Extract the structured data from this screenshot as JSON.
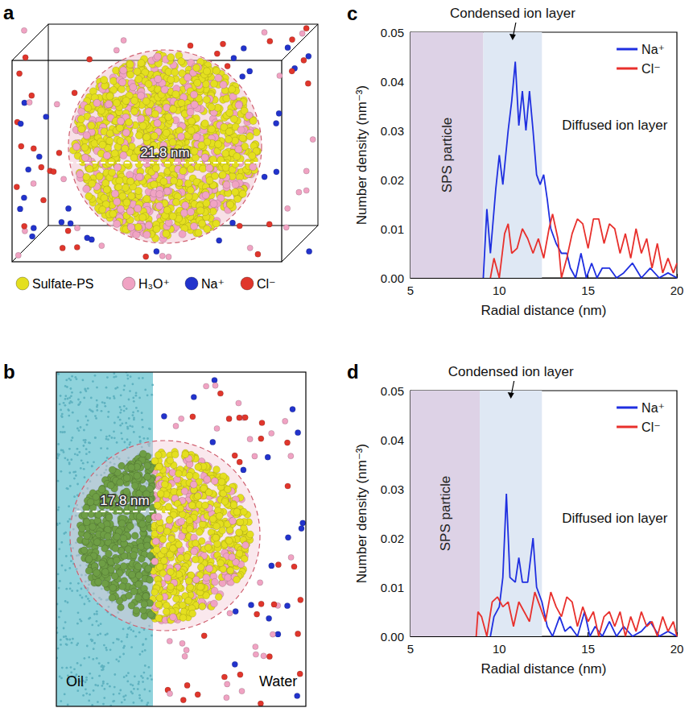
{
  "panels": [
    {
      "letter": "a",
      "scale_label": "21.8 nm",
      "legend": [
        {
          "label": "Sulfate-PS",
          "color": "#e4df1f"
        },
        {
          "label": "H₃O⁺",
          "color": "#f0a3c3"
        },
        {
          "label": "Na⁺",
          "color": "#2233cc"
        },
        {
          "label": "Cl⁻",
          "color": "#e0362c"
        }
      ]
    },
    {
      "letter": "b",
      "scale_label": "17.8 nm",
      "phases": [
        {
          "label": "Oil",
          "color": "#8fd3dc"
        },
        {
          "label": "Water",
          "color": "#ffffff"
        }
      ]
    }
  ],
  "chart_data": [
    {
      "type": "line",
      "panel_label": "c",
      "xlabel": "Radial distance (nm)",
      "ylabel": "Number density (nm⁻³)",
      "xlim": [
        5,
        20
      ],
      "xticks": [
        5,
        10,
        15,
        20
      ],
      "ylim": [
        0,
        0.05
      ],
      "yticks": [
        {
          "value": 0,
          "label": "0.00"
        },
        0.01,
        0.02,
        0.03,
        0.04,
        0.05
      ],
      "grid": false,
      "legend": "upper right",
      "series": [
        {
          "name": "Na⁺",
          "color": "#1f2fe0",
          "x": [
            9.1,
            9.3,
            9.5,
            9.8,
            10.0,
            10.2,
            10.5,
            10.7,
            10.9,
            11.1,
            11.3,
            11.5,
            11.7,
            11.9,
            12.1,
            12.3,
            12.5,
            12.7,
            12.9,
            13.2,
            13.5,
            13.8,
            14.0,
            14.3,
            14.6,
            14.9,
            15.2,
            15.5,
            15.8,
            16.2,
            16.6,
            17.0,
            17.5,
            18.0,
            18.5,
            19.0,
            19.5,
            20.0
          ],
          "values": [
            0,
            0.014,
            0.005,
            0.018,
            0.025,
            0.019,
            0.03,
            0.036,
            0.044,
            0.031,
            0.038,
            0.03,
            0.038,
            0.03,
            0.021,
            0.019,
            0.021,
            0.016,
            0.01,
            0.007,
            0.005,
            0.005,
            0.002,
            0,
            0.005,
            0,
            0.003,
            0,
            0.002,
            0.002,
            0,
            0.001,
            0.003,
            0,
            0.002,
            0,
            0.001,
            0
          ]
        },
        {
          "name": "Cl⁻",
          "color": "#e8302c",
          "x": [
            9.5,
            9.7,
            10.0,
            10.3,
            10.5,
            10.7,
            11.0,
            11.3,
            11.6,
            11.9,
            12.2,
            12.5,
            12.8,
            13.0,
            13.3,
            13.5,
            13.8,
            14.1,
            14.4,
            14.7,
            15.0,
            15.3,
            15.6,
            15.9,
            16.2,
            16.5,
            16.8,
            17.1,
            17.4,
            17.7,
            18.0,
            18.3,
            18.6,
            18.9,
            19.2,
            19.5,
            19.8,
            20.0
          ],
          "values": [
            0,
            0.004,
            0,
            0.009,
            0.011,
            0.005,
            0.006,
            0.01,
            0.008,
            0.005,
            0.008,
            0.004,
            0.01,
            0.013,
            0.008,
            0,
            0.004,
            0.009,
            0.012,
            0.011,
            0.006,
            0.012,
            0.012,
            0.007,
            0.011,
            0.01,
            0.005,
            0.009,
            0.004,
            0.01,
            0.005,
            0.008,
            0.002,
            0.007,
            0.001,
            0.004,
            0.001,
            0.003
          ]
        }
      ],
      "shaded_regions": [
        {
          "label": "SPS particle",
          "xlim": [
            5,
            9.1
          ],
          "color": "#ddd2e6"
        },
        {
          "label": "Condensed ion layer",
          "xlim": [
            9.1,
            12.4
          ],
          "color": "#dfe8f4"
        }
      ],
      "annotations": [
        {
          "text": "Diffused ion layer",
          "x": 16.5,
          "y": 0.031
        }
      ]
    },
    {
      "type": "line",
      "panel_label": "d",
      "xlabel": "Radial distance (nm)",
      "ylabel": "Number density (nm⁻³)",
      "xlim": [
        5,
        20
      ],
      "xticks": [
        5,
        10,
        15,
        20
      ],
      "ylim": [
        0,
        0.05
      ],
      "yticks": [
        {
          "value": 0,
          "label": "0.00"
        },
        0.01,
        0.02,
        0.03,
        0.04,
        0.05
      ],
      "grid": false,
      "legend": "upper right",
      "series": [
        {
          "name": "Na⁺",
          "color": "#1f2fe0",
          "x": [
            9.5,
            9.7,
            10.0,
            10.2,
            10.4,
            10.6,
            10.9,
            11.1,
            11.3,
            11.6,
            11.9,
            12.1,
            12.4,
            12.7,
            13.0,
            13.4,
            13.7,
            14.0,
            14.4,
            14.8,
            15.1,
            15.4,
            15.8,
            16.2,
            16.6,
            17.0,
            17.5,
            18.0,
            18.5,
            19.0,
            19.5,
            20.0
          ],
          "values": [
            0,
            0.004,
            0.006,
            0.012,
            0.029,
            0.012,
            0.011,
            0.016,
            0.011,
            0.011,
            0.02,
            0.01,
            0.007,
            0.002,
            0,
            0.004,
            0.001,
            0.002,
            0,
            0.005,
            0,
            0.002,
            0,
            0.003,
            0,
            0.002,
            0,
            0.001,
            0.003,
            0,
            0.001,
            0
          ]
        },
        {
          "name": "Cl⁻",
          "color": "#e8302c",
          "x": [
            8.7,
            8.8,
            9.0,
            9.3,
            9.6,
            9.9,
            10.2,
            10.5,
            10.8,
            11.1,
            11.4,
            11.7,
            12.0,
            12.3,
            12.6,
            12.9,
            13.2,
            13.5,
            13.8,
            14.1,
            14.4,
            14.7,
            15.0,
            15.3,
            15.6,
            15.9,
            16.2,
            16.5,
            16.8,
            17.1,
            17.4,
            17.7,
            18.0,
            18.3,
            18.6,
            18.9,
            19.2,
            19.5,
            19.8,
            20.0
          ],
          "values": [
            0,
            0.005,
            0.004,
            0,
            0.007,
            0.008,
            0.006,
            0.007,
            0.002,
            0.007,
            0.005,
            0.003,
            0.009,
            0.006,
            0.003,
            0.009,
            0.006,
            0.004,
            0.008,
            0.007,
            0.002,
            0.006,
            0.003,
            0.005,
            0,
            0.004,
            0.005,
            0.002,
            0.005,
            0,
            0.004,
            0.001,
            0.005,
            0.002,
            0.003,
            0,
            0.004,
            0.001,
            0.003,
            0
          ]
        }
      ],
      "shaded_regions": [
        {
          "label": "SPS particle",
          "xlim": [
            5,
            8.9
          ],
          "color": "#ddd2e6"
        },
        {
          "label": "Condensed ion layer",
          "xlim": [
            8.9,
            12.4
          ],
          "color": "#dfe8f4"
        }
      ],
      "annotations": [
        {
          "text": "Diffused ion layer",
          "x": 16.5,
          "y": 0.024
        }
      ]
    }
  ]
}
